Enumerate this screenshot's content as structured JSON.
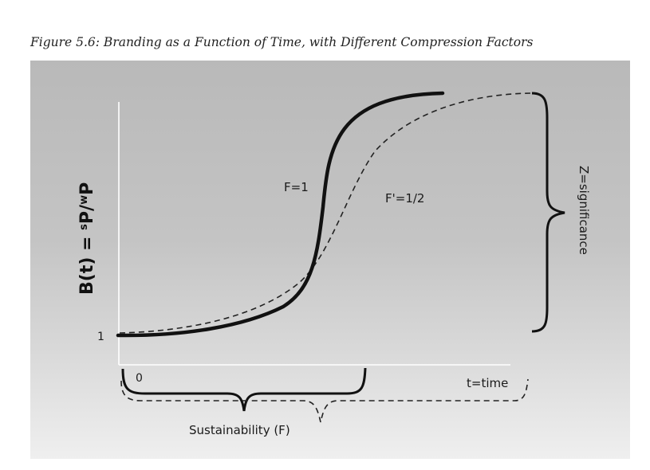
{
  "caption": "Figure 5.6: Branding as a Function of Time, with Different Compression Factors",
  "y_axis_label": "B(t) = sP/wP",
  "y_axis_label_parts": {
    "b": "B(t) = ",
    "s": "s",
    "p1": "P/",
    "w": "w",
    "p2": "P"
  },
  "y_tick": "1",
  "x_tick": "0",
  "x_axis_label": "t=time",
  "curve_solid_label": "F=1",
  "curve_dashed_label": "F'=1/2",
  "brace_right_label": "Z=significance",
  "brace_bottom_label": "Sustainability (F)"
}
